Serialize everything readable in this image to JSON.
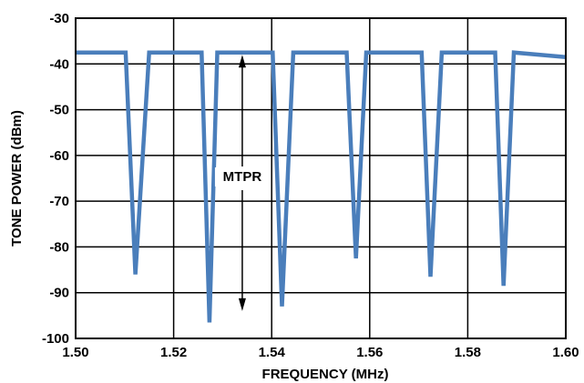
{
  "chart_data": {
    "type": "line",
    "title": "",
    "xlabel": "FREQUENCY (MHz)",
    "ylabel": "TONE POWER (dBm)",
    "xlim": [
      1.5,
      1.6
    ],
    "ylim": [
      -100,
      -30
    ],
    "xticks": [
      "1.50",
      "1.52",
      "1.54",
      "1.56",
      "1.58",
      "1.60"
    ],
    "yticks": [
      "-30",
      "-40",
      "-50",
      "-60",
      "-70",
      "-80",
      "-90",
      "-100"
    ],
    "grid": true,
    "series_color": "#4a7ebb",
    "annotation": {
      "text": "MTPR",
      "x": 1.534,
      "y_top": -38,
      "y_bottom": -94
    },
    "series": [
      {
        "x": [
          1.5,
          1.5102,
          1.5122,
          1.515,
          1.5257,
          1.5273,
          1.5289,
          1.5402,
          1.5421,
          1.5444,
          1.5553,
          1.5572,
          1.5593,
          1.5706,
          1.5724,
          1.5747,
          1.5856,
          1.5873,
          1.5894,
          1.6
        ],
        "y": [
          -37.5,
          -37.5,
          -86,
          -37.5,
          -37.5,
          -96.5,
          -37.5,
          -37.5,
          -93,
          -37.5,
          -37.5,
          -82.5,
          -37.5,
          -37.5,
          -86.5,
          -37.5,
          -37.5,
          -88.5,
          -37.5,
          -38.5
        ]
      }
    ]
  }
}
